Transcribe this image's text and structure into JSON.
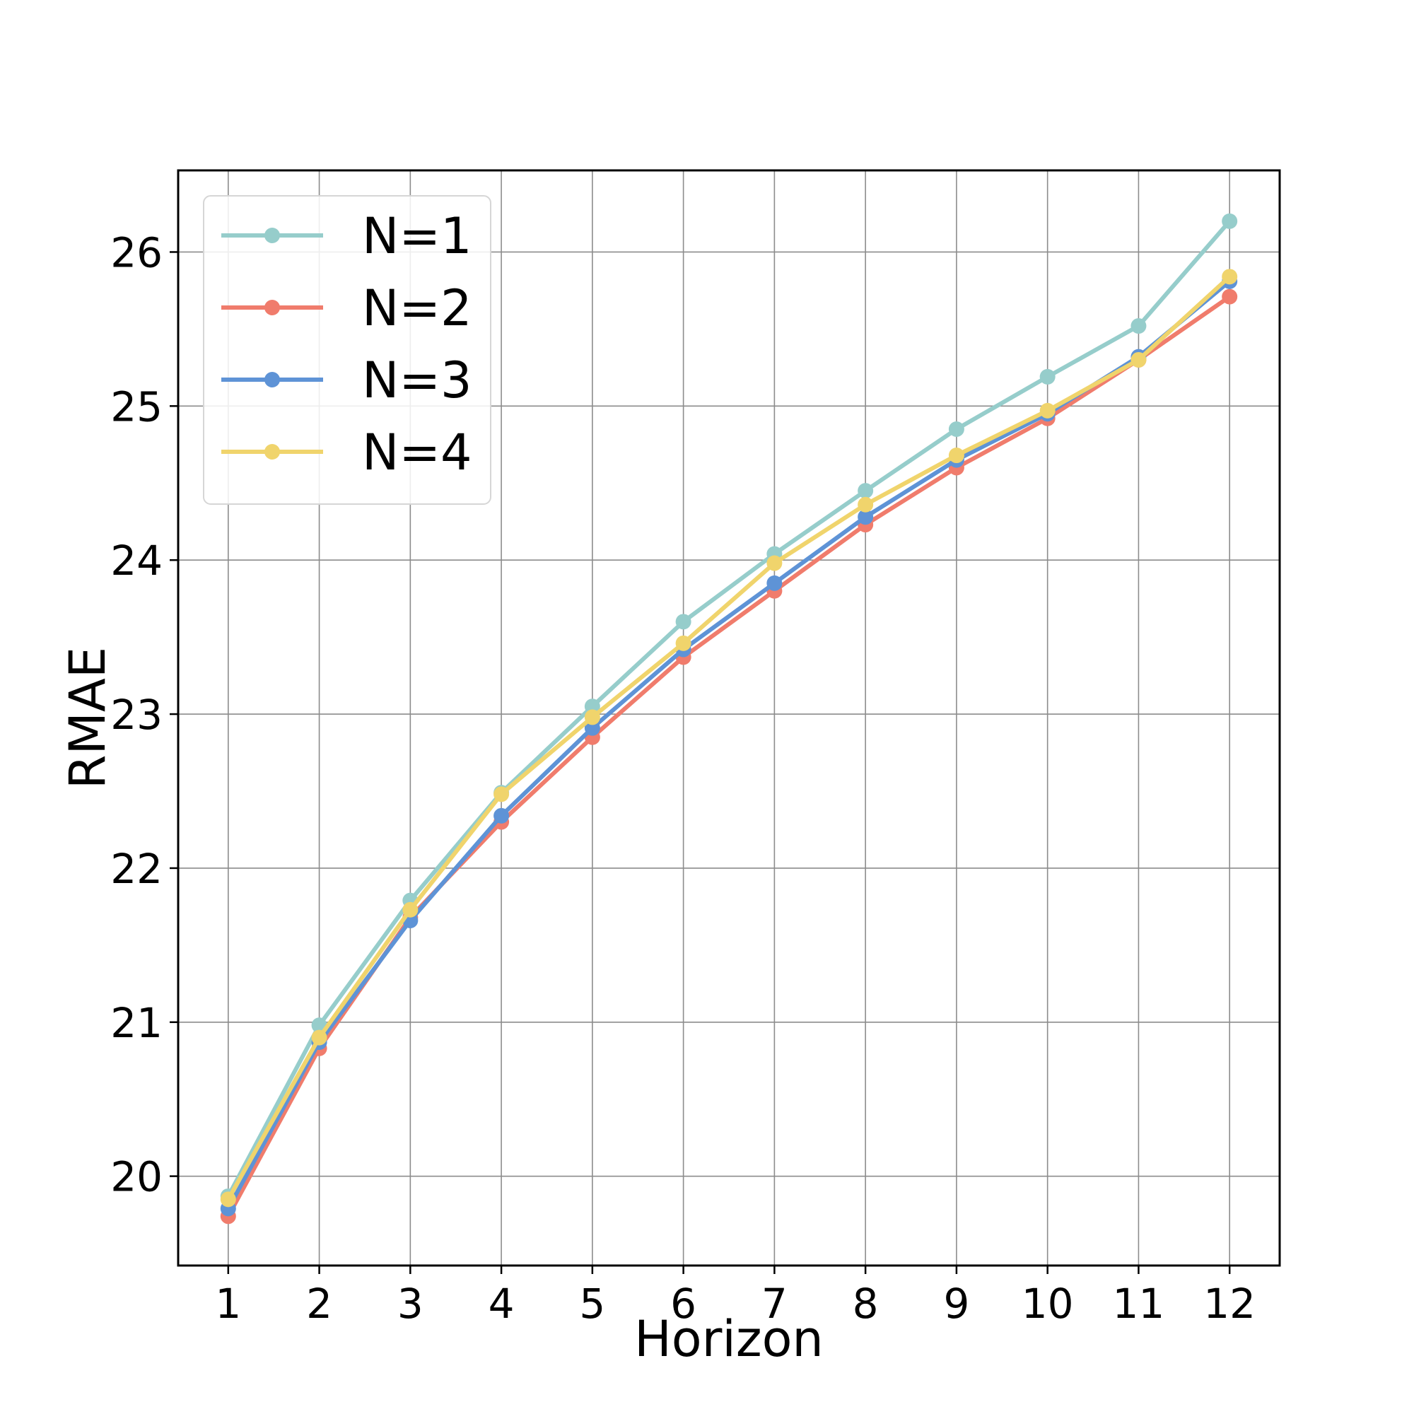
{
  "chart_data": {
    "type": "line",
    "title": "",
    "xlabel": "Horizon",
    "ylabel": "RMAE",
    "x": [
      1,
      2,
      3,
      4,
      5,
      6,
      7,
      8,
      9,
      10,
      11,
      12
    ],
    "x_ticks": [
      "1",
      "2",
      "3",
      "4",
      "5",
      "6",
      "7",
      "8",
      "9",
      "10",
      "11",
      "12"
    ],
    "xlim": [
      0.45,
      12.55
    ],
    "ylim": [
      19.42,
      26.53
    ],
    "y_ticks": [
      20,
      21,
      22,
      23,
      24,
      25,
      26
    ],
    "y_tick_labels": [
      "20",
      "21",
      "22",
      "23",
      "24",
      "25",
      "26"
    ],
    "grid": true,
    "legend_position": "top-left",
    "series": [
      {
        "name": "N=1",
        "color": "#96cdcb",
        "values": [
          19.87,
          20.98,
          21.79,
          22.49,
          23.05,
          23.6,
          24.04,
          24.45,
          24.85,
          25.19,
          25.52,
          26.2
        ]
      },
      {
        "name": "N=2",
        "color": "#f07c6c",
        "values": [
          19.74,
          20.83,
          21.68,
          22.3,
          22.85,
          23.37,
          23.8,
          24.23,
          24.6,
          24.92,
          25.3,
          25.71
        ]
      },
      {
        "name": "N=3",
        "color": "#5e93d6",
        "values": [
          19.79,
          20.87,
          21.66,
          22.34,
          22.91,
          23.42,
          23.85,
          24.28,
          24.65,
          24.95,
          25.32,
          25.81
        ]
      },
      {
        "name": "N=4",
        "color": "#f0d46c",
        "values": [
          19.85,
          20.9,
          21.73,
          22.48,
          22.98,
          23.46,
          23.98,
          24.36,
          24.68,
          24.97,
          25.3,
          25.84
        ]
      }
    ]
  }
}
